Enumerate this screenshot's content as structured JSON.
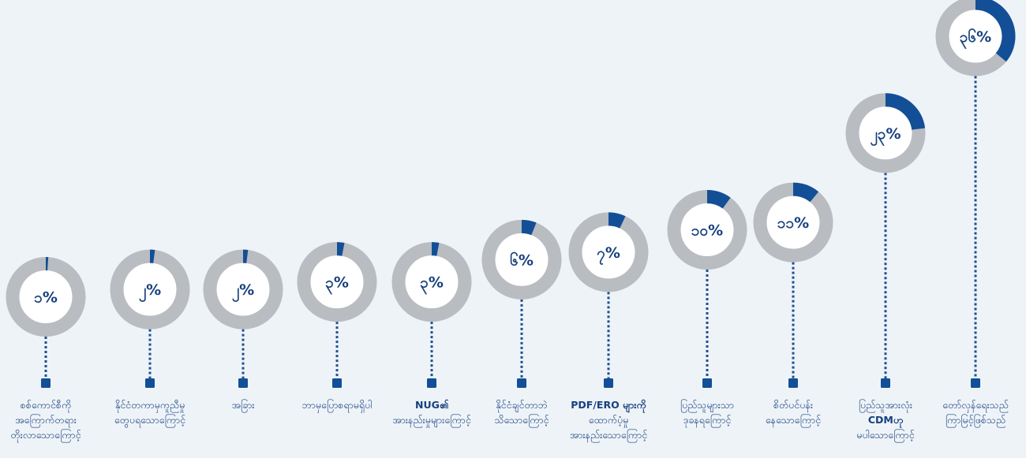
{
  "chart_data": {
    "type": "donut-timeline",
    "colors": {
      "accent": "#134f96",
      "track": "#b9bcc1",
      "inner": "#ffffff",
      "text": "#17407e",
      "connector": "#1f4f8f",
      "background": "#eef3f8"
    },
    "items": [
      {
        "value": 1,
        "value_label": "၁%",
        "label_lines": [
          {
            "t": "စစ်ကောင်စီကို"
          },
          {
            "t": "အကြောက်တရား"
          },
          {
            "t": "တိုးလာသောကြောင့်"
          }
        ]
      },
      {
        "value": 2,
        "value_label": "၂%",
        "label_lines": [
          {
            "t": "နိုင်ငံတကာမှကူညီမှု"
          },
          {
            "t": "တွေပရသောကြောင့်"
          }
        ]
      },
      {
        "value": 2,
        "value_label": "၂%",
        "label_lines": [
          {
            "t": "အခြား"
          }
        ]
      },
      {
        "value": 3,
        "value_label": "၃%",
        "label_lines": [
          {
            "t": "ဘာမှပြောစရာမရှိပါ"
          }
        ]
      },
      {
        "value": 3,
        "value_label": "၃%",
        "label_lines": [
          {
            "t": "NUG၏",
            "b": true
          },
          {
            "t": "အားနည်းမှုများကြောင့်"
          }
        ]
      },
      {
        "value": 6,
        "value_label": "၆%",
        "label_lines": [
          {
            "t": "နိုင်ငံချင်တာဘဲ"
          },
          {
            "t": "သိသောကြောင့်"
          }
        ]
      },
      {
        "value": 7,
        "value_label": "၇%",
        "label_lines": [
          {
            "t": "PDF/ERO များကို",
            "b": true
          },
          {
            "t": "ထောက်ပံ့မှု"
          },
          {
            "t": "အားနည်းသောကြောင့်"
          }
        ]
      },
      {
        "value": 10,
        "value_label": "၁၀%",
        "label_lines": [
          {
            "t": "ပြည်သူများသာ"
          },
          {
            "t": "ဒုခနရကြောင့်"
          }
        ]
      },
      {
        "value": 11,
        "value_label": "၁၁%",
        "label_lines": [
          {
            "t": "စိတ်ပင်ပန်း"
          },
          {
            "t": "နေသောကြောင့်"
          }
        ]
      },
      {
        "value": 23,
        "value_label": "၂၃%",
        "label_lines": [
          {
            "t": "ပြည်သူအားလုံး"
          },
          {
            "t": "CDMဟု",
            "b": true
          },
          {
            "t": "မပါသောကြောင့်"
          }
        ]
      },
      {
        "value": 36,
        "value_label": "၃၆%",
        "label_lines": [
          {
            "t": "တော်လှန်ရေးသည်"
          },
          {
            "t": "ကြာမြင့်ဖြစ်သည်"
          }
        ]
      }
    ]
  }
}
